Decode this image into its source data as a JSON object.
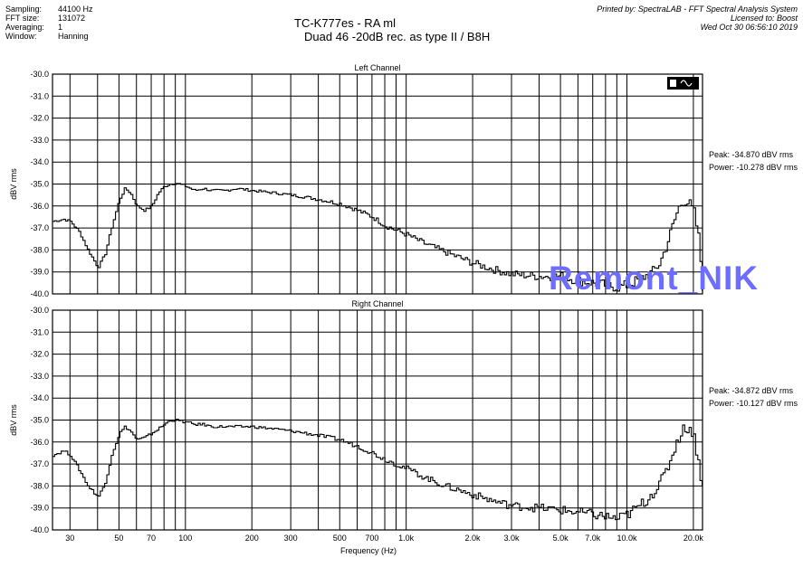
{
  "meta_left": [
    {
      "label": "Sampling:",
      "value": "44100 Hz"
    },
    {
      "label": "FFT size:",
      "value": "131072"
    },
    {
      "label": "Averaging:",
      "value": "1"
    },
    {
      "label": "Window:",
      "value": "Hanning"
    }
  ],
  "meta_right": [
    "Printed by: SpectraLAB - FFT Spectral Analysis System",
    "Licensed to: Boost",
    "Wed Oct 30 06:56:10 2019"
  ],
  "title_line1": "TC-K777es - RA ml",
  "title_line2": "Duad 46  -20dB  rec. as type II   /  B8H",
  "watermark": "Remont_NIK",
  "chart_data": [
    {
      "type": "line",
      "title": "Left Channel",
      "ylabel": "dBV rms",
      "xscale": "log",
      "xlim": [
        25,
        22000
      ],
      "ylim": [
        -40,
        -30
      ],
      "yticks": [
        "-30.0",
        "-31.0",
        "-32.0",
        "-33.0",
        "-34.0",
        "-35.0",
        "-36.0",
        "-37.0",
        "-38.0",
        "-39.0",
        "-40.0"
      ],
      "xticks": [],
      "xlabel": "",
      "peak": "Peak: -34.870 dBV rms",
      "power": "Power: -10.278 dBV rms",
      "x": [
        25,
        28,
        30,
        33,
        36,
        40,
        43,
        46,
        50,
        53,
        56,
        60,
        65,
        70,
        75,
        80,
        85,
        90,
        100,
        110,
        120,
        130,
        150,
        170,
        200,
        250,
        300,
        350,
        400,
        500,
        600,
        700,
        800,
        1000,
        1200,
        1500,
        2000,
        2500,
        3000,
        4000,
        5000,
        6000,
        7000,
        8000,
        9000,
        10000,
        11000,
        12000,
        13000,
        14000,
        15000,
        16000,
        17000,
        18000,
        19000,
        20000,
        21000,
        22000
      ],
      "y": [
        -36.7,
        -36.6,
        -36.7,
        -37.2,
        -38.0,
        -38.8,
        -38.2,
        -37.0,
        -35.7,
        -35.2,
        -35.4,
        -36.0,
        -36.2,
        -36.0,
        -35.4,
        -35.1,
        -35.0,
        -34.95,
        -35.1,
        -35.3,
        -35.2,
        -35.3,
        -35.3,
        -35.2,
        -35.3,
        -35.4,
        -35.5,
        -35.6,
        -35.7,
        -35.9,
        -36.2,
        -36.5,
        -36.9,
        -37.3,
        -37.7,
        -38.1,
        -38.6,
        -38.9,
        -39.1,
        -39.2,
        -39.2,
        -39.4,
        -39.5,
        -39.6,
        -39.7,
        -39.6,
        -39.4,
        -39.2,
        -39.0,
        -38.6,
        -37.8,
        -36.9,
        -36.1,
        -35.7,
        -35.9,
        -36.3,
        -37.5,
        -39.8
      ]
    },
    {
      "type": "line",
      "title": "Right Channel",
      "ylabel": "dBV rms",
      "xscale": "log",
      "xlim": [
        25,
        22000
      ],
      "ylim": [
        -40,
        -30
      ],
      "yticks": [
        "-30.0",
        "-31.0",
        "-32.0",
        "-33.0",
        "-34.0",
        "-35.0",
        "-36.0",
        "-37.0",
        "-38.0",
        "-39.0",
        "-40.0"
      ],
      "xticks": [
        {
          "v": 30,
          "label": "30"
        },
        {
          "v": 50,
          "label": "50"
        },
        {
          "v": 70,
          "label": "70"
        },
        {
          "v": 100,
          "label": "100"
        },
        {
          "v": 200,
          "label": "200"
        },
        {
          "v": 300,
          "label": "300"
        },
        {
          "v": 500,
          "label": "500"
        },
        {
          "v": 700,
          "label": "700"
        },
        {
          "v": 1000,
          "label": "1.0k"
        },
        {
          "v": 2000,
          "label": "2.0k"
        },
        {
          "v": 3000,
          "label": "3.0k"
        },
        {
          "v": 5000,
          "label": "5.0k"
        },
        {
          "v": 7000,
          "label": "7.0k"
        },
        {
          "v": 10000,
          "label": "10.0k"
        },
        {
          "v": 20000,
          "label": "20.0k"
        }
      ],
      "xlabel": "Frequency (Hz)",
      "peak": "Peak: -34.872 dBV rms",
      "power": "Power: -10.127 dBV rms",
      "x": [
        25,
        28,
        30,
        33,
        36,
        40,
        43,
        46,
        50,
        53,
        56,
        60,
        65,
        70,
        75,
        80,
        85,
        90,
        100,
        110,
        120,
        130,
        150,
        170,
        200,
        250,
        300,
        350,
        400,
        500,
        600,
        700,
        800,
        1000,
        1200,
        1500,
        2000,
        2500,
        3000,
        4000,
        5000,
        6000,
        7000,
        8000,
        9000,
        10000,
        11000,
        12000,
        13000,
        14000,
        15000,
        16000,
        17000,
        18000,
        19000,
        20000,
        21000,
        22000
      ],
      "y": [
        -36.6,
        -36.4,
        -36.6,
        -37.3,
        -38.0,
        -38.5,
        -37.9,
        -36.6,
        -35.6,
        -35.3,
        -35.5,
        -35.9,
        -35.8,
        -35.6,
        -35.4,
        -35.2,
        -35.0,
        -35.0,
        -35.1,
        -35.2,
        -35.2,
        -35.3,
        -35.3,
        -35.3,
        -35.3,
        -35.4,
        -35.5,
        -35.6,
        -35.7,
        -35.9,
        -36.2,
        -36.5,
        -36.8,
        -37.2,
        -37.6,
        -38.0,
        -38.4,
        -38.7,
        -38.9,
        -39.0,
        -39.1,
        -39.2,
        -39.3,
        -39.4,
        -39.5,
        -39.3,
        -39.0,
        -38.7,
        -38.3,
        -37.9,
        -37.3,
        -36.5,
        -35.8,
        -35.4,
        -35.3,
        -35.8,
        -36.9,
        -38.3
      ]
    }
  ]
}
